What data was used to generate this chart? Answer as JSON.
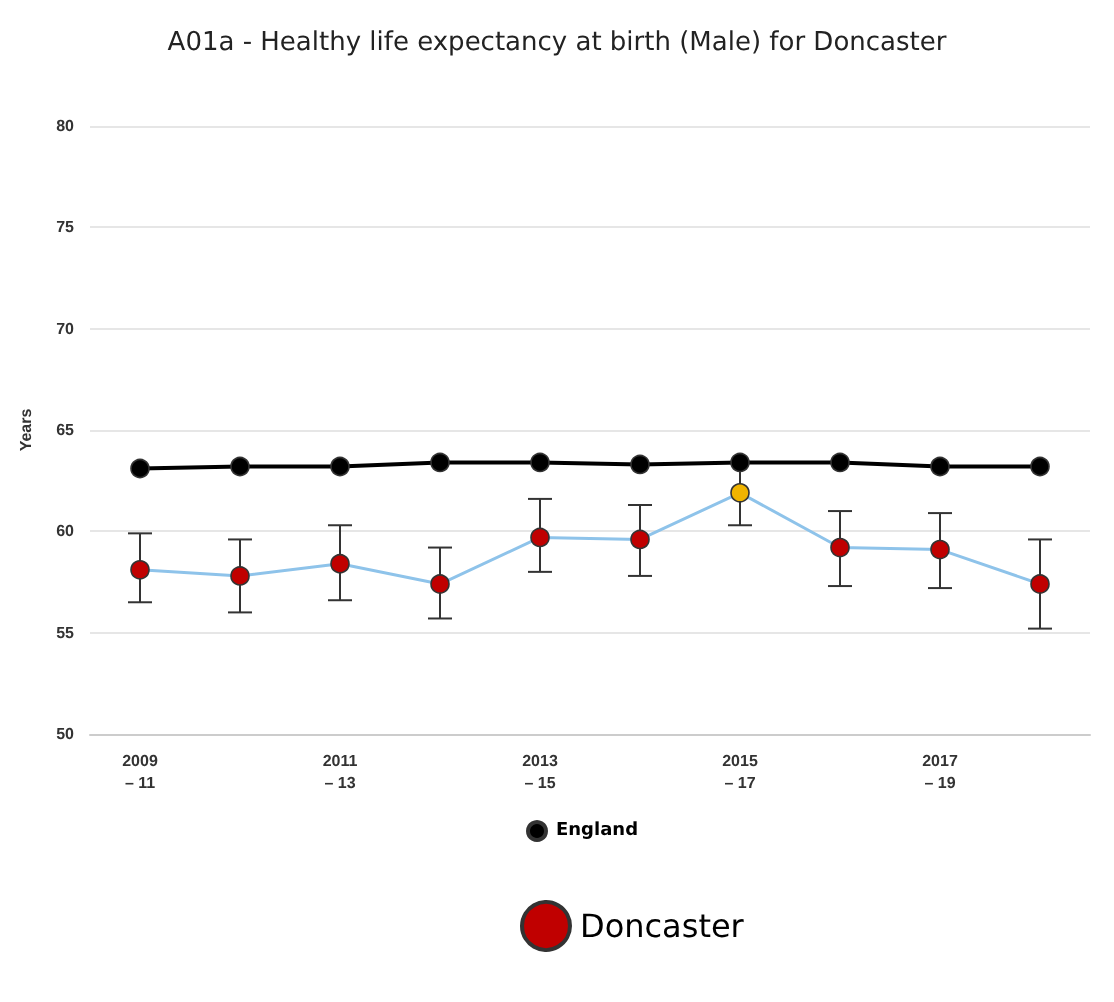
{
  "chart_data": {
    "type": "line",
    "title": "A01a - Healthy life expectancy at birth (Male) for Doncaster",
    "ylabel": "Years",
    "categories": [
      "2009\n– 11",
      null,
      "2011\n– 13",
      null,
      "2013\n– 15",
      null,
      "2015\n– 17",
      null,
      "2017\n– 19",
      null
    ],
    "series": [
      {
        "name": "England",
        "color": "#000000",
        "values": [
          63.1,
          63.2,
          63.2,
          63.4,
          63.4,
          63.3,
          63.4,
          63.4,
          63.2,
          63.2
        ]
      },
      {
        "name": "Doncaster",
        "color": "#8ec3ea",
        "colors": [
          "#c00000",
          "#c00000",
          "#c00000",
          "#c00000",
          "#c00000",
          "#c00000",
          "#f0b400",
          "#c00000",
          "#c00000",
          "#c00000"
        ],
        "values": [
          58.1,
          57.8,
          58.4,
          57.4,
          59.7,
          59.6,
          61.9,
          59.2,
          59.1,
          57.4
        ],
        "errors": [
          [
            56.5,
            59.9
          ],
          [
            56.0,
            59.6
          ],
          [
            56.6,
            60.3
          ],
          [
            55.7,
            59.2
          ],
          [
            58.0,
            61.6
          ],
          [
            57.8,
            61.3
          ],
          [
            60.3,
            63.4
          ],
          [
            57.3,
            61.0
          ],
          [
            57.2,
            60.9
          ],
          [
            55.2,
            59.6
          ]
        ]
      }
    ],
    "ylim": [
      50,
      80
    ],
    "yticks": [
      50,
      55,
      60,
      65,
      70,
      75,
      80
    ],
    "grid": "y",
    "legend": "bottom",
    "marker": "circle",
    "line_style": "solid"
  }
}
